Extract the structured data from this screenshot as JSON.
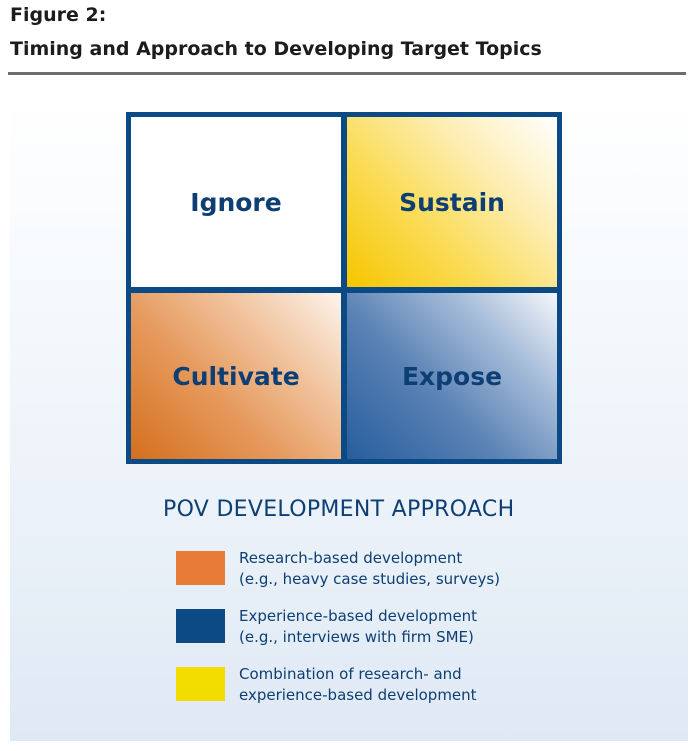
{
  "header": {
    "figure_label": "Figure 2:",
    "title": "Timing and Approach to Developing Target Topics"
  },
  "quadrants": {
    "top_left": {
      "label": "Ignore"
    },
    "top_right": {
      "label": "Sustain"
    },
    "bottom_left": {
      "label": "Cultivate"
    },
    "bottom_right": {
      "label": "Expose"
    }
  },
  "legend": {
    "title": "POV DEVELOPMENT APPROACH",
    "items": [
      {
        "line1": "Research-based development",
        "line2": "(e.g., heavy case studies, surveys)",
        "color": "#e87b36"
      },
      {
        "line1": "Experience-based development",
        "line2": "(e.g., interviews with firm SME)",
        "color": "#0b4a85"
      },
      {
        "line1": "Combination of research- and",
        "line2": "experience-based development",
        "color": "#f3dc00"
      }
    ]
  },
  "colors": {
    "text_primary": "#0e3f74",
    "grid_border": "#0b4a85",
    "rule": "#6e6e6e"
  }
}
